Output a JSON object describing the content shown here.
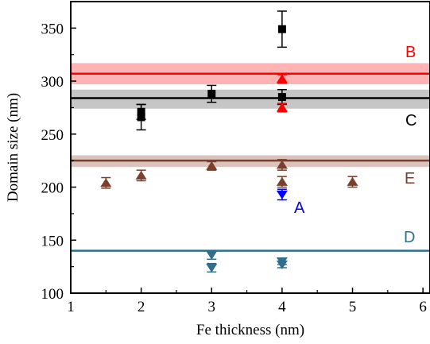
{
  "chart_data": {
    "type": "scatter",
    "xlabel": "Fe thickness (nm)",
    "ylabel": "Domain size (nm)",
    "xlim": [
      1,
      6.1
    ],
    "ylim": [
      100,
      375
    ],
    "xticks": [
      "1",
      "2",
      "3",
      "4",
      "5",
      "6"
    ],
    "yticks": [
      "100",
      "150",
      "200",
      "250",
      "300",
      "350"
    ],
    "grid": false,
    "reference_lines": [
      {
        "label": "B",
        "value": 307,
        "band": [
          297,
          317
        ],
        "color": "#ff0000",
        "band_color": "#ffb3b3"
      },
      {
        "label": "C",
        "value": 284,
        "band": [
          274,
          292
        ],
        "color": "#000000",
        "band_color": "#c6c6c6"
      },
      {
        "label": "E",
        "value": 225,
        "band": [
          219,
          230
        ],
        "color": "#7b3f2c",
        "band_color": "#d9c3bc"
      },
      {
        "label": "D",
        "value": 140,
        "band": null,
        "color": "#2e6f8e",
        "band_color": null
      },
      {
        "label": "A",
        "value": null,
        "band": null,
        "color": "#0000ff",
        "band_color": null
      }
    ],
    "series": [
      {
        "marker": "square",
        "color": "#000000",
        "points": [
          {
            "x": 2,
            "y": 266,
            "err": 12
          },
          {
            "x": 2,
            "y": 271,
            "err": 7
          },
          {
            "x": 3,
            "y": 288,
            "err": 8
          },
          {
            "x": 4,
            "y": 349,
            "err": 17
          },
          {
            "x": 4,
            "y": 285,
            "err": 7
          }
        ]
      },
      {
        "marker": "triangle-up",
        "color": "#ff0000",
        "points": [
          {
            "x": 4,
            "y": 302,
            "err": 4
          },
          {
            "x": 4,
            "y": 275,
            "err": 4
          }
        ]
      },
      {
        "marker": "triangle-up",
        "color": "#7b3f2c",
        "points": [
          {
            "x": 1.5,
            "y": 204,
            "err": 5
          },
          {
            "x": 2,
            "y": 211,
            "err": 5
          },
          {
            "x": 3,
            "y": 220,
            "err": 4
          },
          {
            "x": 4,
            "y": 221,
            "err": 5
          },
          {
            "x": 4,
            "y": 205,
            "err": 5
          },
          {
            "x": 5,
            "y": 205,
            "err": 5
          }
        ]
      },
      {
        "marker": "triangle-down",
        "color": "#0000ff",
        "points": [
          {
            "x": 4,
            "y": 193,
            "err": 5
          }
        ]
      },
      {
        "marker": "triangle-down",
        "color": "#2e6f8e",
        "points": [
          {
            "x": 3,
            "y": 136,
            "err": 4
          },
          {
            "x": 3,
            "y": 124,
            "err": 4
          },
          {
            "x": 4,
            "y": 130,
            "err": 3
          },
          {
            "x": 4,
            "y": 127,
            "err": 3
          }
        ]
      }
    ]
  }
}
